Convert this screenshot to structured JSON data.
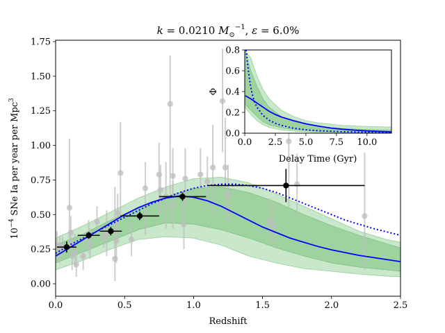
{
  "chart_data": [
    {
      "type": "scatter",
      "panel": "main",
      "title": "k = 0.0210 M⊙⁻¹,  ε = 6.0%",
      "title_parts": {
        "k_label": "k",
        "k_eq": " = 0.0210 ",
        "unit_base": "M",
        "unit_sub": "⊙",
        "unit_sup": "−1",
        "sep": ",  ",
        "eps_label": "ε",
        "eps_eq": " = 6.0%"
      },
      "xlabel": "Redshift",
      "ylabel": "10⁻⁴ SNe Ia per year per Mpc³",
      "ylabel_parts": {
        "base": "10",
        "exp": "−4",
        "middle": " SNe Ia per year per Mpc",
        "sup3": "3"
      },
      "xlim": [
        0.0,
        2.5
      ],
      "ylim": [
        -0.09,
        1.76
      ],
      "xticks": [
        "0.0",
        "0.5",
        "1.0",
        "1.5",
        "2.0",
        "2.5"
      ],
      "yticks": [
        "0.00",
        "0.25",
        "0.50",
        "0.75",
        "1.00",
        "1.25",
        "1.50",
        "1.75"
      ],
      "grid": false,
      "literature_points": [
        {
          "x": 0.01,
          "y": 0.28,
          "lo": 0.18,
          "hi": 0.38
        },
        {
          "x": 0.03,
          "y": 0.25,
          "lo": 0.15,
          "hi": 0.35
        },
        {
          "x": 0.05,
          "y": 0.27,
          "lo": 0.2,
          "hi": 0.34
        },
        {
          "x": 0.1,
          "y": 0.55,
          "lo": 0.25,
          "hi": 1.05
        },
        {
          "x": 0.11,
          "y": 0.37,
          "lo": 0.25,
          "hi": 0.49
        },
        {
          "x": 0.12,
          "y": 0.2,
          "lo": 0.1,
          "hi": 0.32
        },
        {
          "x": 0.14,
          "y": 0.23,
          "lo": 0.12,
          "hi": 0.36
        },
        {
          "x": 0.15,
          "y": 0.14,
          "lo": 0.05,
          "hi": 0.24
        },
        {
          "x": 0.2,
          "y": 0.2,
          "lo": 0.1,
          "hi": 0.32
        },
        {
          "x": 0.24,
          "y": 0.34,
          "lo": 0.22,
          "hi": 0.46
        },
        {
          "x": 0.25,
          "y": 0.29,
          "lo": 0.18,
          "hi": 0.4
        },
        {
          "x": 0.3,
          "y": 0.45,
          "lo": 0.35,
          "hi": 0.56
        },
        {
          "x": 0.35,
          "y": 0.34,
          "lo": 0.26,
          "hi": 0.42
        },
        {
          "x": 0.37,
          "y": 0.35,
          "lo": 0.2,
          "hi": 0.53
        },
        {
          "x": 0.43,
          "y": 0.18,
          "lo": 0.02,
          "hi": 0.7
        },
        {
          "x": 0.44,
          "y": 0.31,
          "lo": 0.15,
          "hi": 0.45
        },
        {
          "x": 0.45,
          "y": 0.51,
          "lo": 0.35,
          "hi": 0.65
        },
        {
          "x": 0.47,
          "y": 0.8,
          "lo": 0.5,
          "hi": 1.17
        },
        {
          "x": 0.55,
          "y": 0.32,
          "lo": 0.2,
          "hi": 0.44
        },
        {
          "x": 0.65,
          "y": 0.69,
          "lo": 0.35,
          "hi": 0.88
        },
        {
          "x": 0.75,
          "y": 0.79,
          "lo": 0.55,
          "hi": 1.02
        },
        {
          "x": 0.76,
          "y": 0.68,
          "lo": 0.5,
          "hi": 0.86
        },
        {
          "x": 0.8,
          "y": 0.63,
          "lo": 0.4,
          "hi": 0.88
        },
        {
          "x": 0.83,
          "y": 1.3,
          "lo": 0.65,
          "hi": 1.65
        },
        {
          "x": 0.85,
          "y": 0.78,
          "lo": 0.6,
          "hi": 0.98
        },
        {
          "x": 0.85,
          "y": 0.57,
          "lo": 0.4,
          "hi": 0.74
        },
        {
          "x": 0.93,
          "y": 0.43,
          "lo": 0.25,
          "hi": 0.62
        },
        {
          "x": 0.94,
          "y": 0.76,
          "lo": 0.55,
          "hi": 0.98
        },
        {
          "x": 1.05,
          "y": 0.79,
          "lo": 0.6,
          "hi": 0.98
        },
        {
          "x": 1.1,
          "y": 0.74,
          "lo": 0.55,
          "hi": 0.92
        },
        {
          "x": 1.14,
          "y": 0.84,
          "lo": 0.5,
          "hi": 1.15
        },
        {
          "x": 1.21,
          "y": 1.32,
          "lo": 0.95,
          "hi": 1.7
        },
        {
          "x": 1.23,
          "y": 0.84,
          "lo": 0.5,
          "hi": 1.2
        },
        {
          "x": 1.25,
          "y": 0.64,
          "lo": 0.45,
          "hi": 0.86
        },
        {
          "x": 1.55,
          "y": 0.45,
          "lo": 0.3,
          "hi": 0.62
        },
        {
          "x": 1.58,
          "y": 0.42,
          "lo": 0.26,
          "hi": 0.58
        },
        {
          "x": 1.69,
          "y": 1.03,
          "lo": 0.55,
          "hi": 1.35
        },
        {
          "x": 1.75,
          "y": 0.72,
          "lo": 0.5,
          "hi": 0.94
        },
        {
          "x": 2.24,
          "y": 0.49,
          "lo": 0.1,
          "hi": 0.95
        }
      ],
      "binned_points": [
        {
          "x": 0.08,
          "y": 0.265,
          "xerr": 0.07,
          "yerr": 0.04
        },
        {
          "x": 0.24,
          "y": 0.35,
          "xerr": 0.08,
          "yerr": 0.025
        },
        {
          "x": 0.4,
          "y": 0.38,
          "xerr": 0.08,
          "yerr": 0.03
        },
        {
          "x": 0.61,
          "y": 0.49,
          "xerr": 0.14,
          "yerr": 0.03
        },
        {
          "x": 0.92,
          "y": 0.63,
          "xerr": 0.17,
          "yerr": 0.03
        },
        {
          "x": 1.67,
          "y": 0.71,
          "xerr": 0.57,
          "yerr": 0.12
        }
      ],
      "model_curve": {
        "x": [
          0,
          0.1,
          0.2,
          0.3,
          0.4,
          0.5,
          0.6,
          0.7,
          0.8,
          0.9,
          1.0,
          1.1,
          1.2,
          1.3,
          1.4,
          1.5,
          1.6,
          1.7,
          1.8,
          1.9,
          2.0,
          2.1,
          2.2,
          2.3,
          2.4,
          2.5
        ],
        "y": [
          0.2,
          0.26,
          0.32,
          0.38,
          0.44,
          0.5,
          0.55,
          0.59,
          0.62,
          0.635,
          0.625,
          0.6,
          0.56,
          0.51,
          0.46,
          0.41,
          0.37,
          0.33,
          0.3,
          0.27,
          0.245,
          0.225,
          0.205,
          0.19,
          0.175,
          0.16
        ],
        "color": "#0000ff",
        "style": "solid"
      },
      "model_curve_dotted": {
        "x": [
          0,
          0.1,
          0.2,
          0.3,
          0.4,
          0.5,
          0.6,
          0.7,
          0.8,
          0.9,
          1.0,
          1.1,
          1.2,
          1.3,
          1.4,
          1.5,
          1.6,
          1.7,
          1.8,
          1.9,
          2.0,
          2.1,
          2.2,
          2.3,
          2.4,
          2.5
        ],
        "y": [
          0.22,
          0.28,
          0.33,
          0.38,
          0.43,
          0.48,
          0.53,
          0.58,
          0.62,
          0.66,
          0.69,
          0.71,
          0.72,
          0.72,
          0.71,
          0.69,
          0.66,
          0.62,
          0.58,
          0.54,
          0.5,
          0.46,
          0.43,
          0.4,
          0.375,
          0.35
        ],
        "color": "#0000ff",
        "style": "dotted"
      },
      "band_outer": {
        "x": [
          0,
          0.2,
          0.4,
          0.6,
          0.8,
          1.0,
          1.2,
          1.4,
          1.6,
          1.8,
          2.0,
          2.2,
          2.4,
          2.5
        ],
        "lower": [
          0.1,
          0.17,
          0.25,
          0.32,
          0.34,
          0.33,
          0.28,
          0.2,
          0.15,
          0.11,
          0.09,
          0.07,
          0.055,
          0.05
        ],
        "upper": [
          0.33,
          0.42,
          0.52,
          0.62,
          0.7,
          0.76,
          0.77,
          0.73,
          0.65,
          0.56,
          0.47,
          0.38,
          0.32,
          0.3
        ],
        "color": "#7ec87e"
      },
      "band_inner": {
        "x": [
          0,
          0.2,
          0.4,
          0.6,
          0.8,
          1.0,
          1.2,
          1.4,
          1.6,
          1.8,
          2.0,
          2.2,
          2.4,
          2.5
        ],
        "lower": [
          0.15,
          0.23,
          0.31,
          0.39,
          0.44,
          0.43,
          0.39,
          0.33,
          0.26,
          0.2,
          0.15,
          0.12,
          0.1,
          0.09
        ],
        "upper": [
          0.28,
          0.36,
          0.46,
          0.55,
          0.63,
          0.69,
          0.7,
          0.66,
          0.59,
          0.5,
          0.42,
          0.35,
          0.29,
          0.26
        ],
        "color": "#5fb35f"
      },
      "colors": {
        "literature": "#bdbdbd",
        "binned": "#000000",
        "curve": "#0000ff",
        "band": "#4caf50"
      }
    },
    {
      "type": "line",
      "panel": "inset",
      "xlabel": "Delay Time (Gyr)",
      "ylabel": "Φ",
      "xlim": [
        0,
        12
      ],
      "ylim": [
        0,
        0.8
      ],
      "xticks": [
        "0.0",
        "2.5",
        "5.0",
        "7.5",
        "10.0"
      ],
      "yticks": [
        "0.0",
        "0.2",
        "0.4",
        "0.6",
        "0.8"
      ],
      "grid": false,
      "solid_curve": {
        "x": [
          0.05,
          0.5,
          1,
          1.5,
          2,
          2.5,
          3,
          4,
          5,
          6,
          7,
          8,
          9,
          10,
          11,
          12
        ],
        "y": [
          0.36,
          0.33,
          0.29,
          0.25,
          0.21,
          0.18,
          0.155,
          0.12,
          0.09,
          0.068,
          0.05,
          0.038,
          0.029,
          0.022,
          0.017,
          0.013
        ]
      },
      "dotted_curve": {
        "x": [
          0.12,
          0.2,
          0.3,
          0.45,
          0.6,
          0.8,
          1,
          1.5,
          2,
          2.5,
          3,
          4,
          5,
          6,
          8,
          10,
          12
        ],
        "y": [
          0.8,
          0.7,
          0.6,
          0.47,
          0.38,
          0.3,
          0.25,
          0.17,
          0.125,
          0.095,
          0.075,
          0.048,
          0.033,
          0.024,
          0.014,
          0.009,
          0.006
        ]
      },
      "band_outer": {
        "x": [
          0,
          0.5,
          1,
          1.5,
          2,
          3,
          4,
          5,
          6,
          8,
          10,
          12
        ],
        "lower": [
          0.25,
          0.18,
          0.12,
          0.08,
          0.055,
          0.03,
          0.02,
          0.012,
          0.008,
          0.004,
          0.002,
          0.001
        ],
        "upper": [
          0.8,
          0.72,
          0.55,
          0.42,
          0.33,
          0.22,
          0.16,
          0.12,
          0.1,
          0.075,
          0.065,
          0.06
        ]
      },
      "band_inner": {
        "x": [
          0,
          0.5,
          1,
          1.5,
          2,
          3,
          4,
          5,
          6,
          8,
          10,
          12
        ],
        "lower": [
          0.28,
          0.22,
          0.16,
          0.11,
          0.08,
          0.05,
          0.035,
          0.025,
          0.018,
          0.01,
          0.006,
          0.004
        ],
        "upper": [
          0.8,
          0.6,
          0.45,
          0.33,
          0.25,
          0.16,
          0.115,
          0.085,
          0.065,
          0.045,
          0.035,
          0.03
        ]
      }
    }
  ]
}
